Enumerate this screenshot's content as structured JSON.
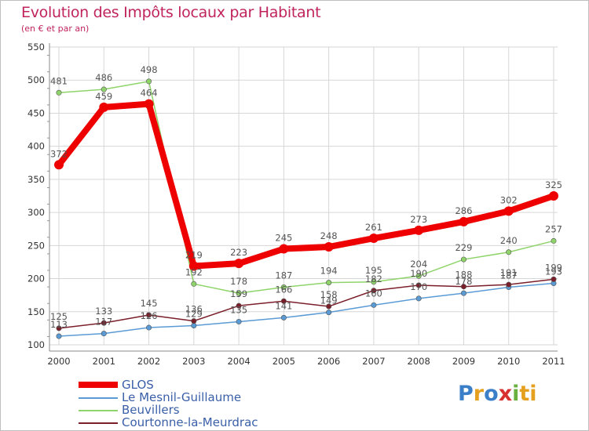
{
  "chart_data": {
    "type": "line",
    "title": "Evolution des Impôts locaux par Habitant",
    "subtitle": "(en € et par an)",
    "x": [
      "2000",
      "2001",
      "2002",
      "2003",
      "2004",
      "2005",
      "2006",
      "2007",
      "2008",
      "2009",
      "2010",
      "2011"
    ],
    "ylim": [
      100,
      550
    ],
    "yticks": [
      100,
      150,
      200,
      250,
      300,
      350,
      400,
      450,
      500,
      550
    ],
    "grid": true,
    "series": [
      {
        "name": "GLOS",
        "color": "#ee0000",
        "values": [
          372,
          459,
          464,
          219,
          223,
          245,
          248,
          261,
          273,
          286,
          302,
          325
        ]
      },
      {
        "name": "Le Mesnil-Guillaume",
        "color": "#5b9bd5",
        "values": [
          113,
          117,
          126,
          129,
          135,
          141,
          149,
          160,
          170,
          178,
          187,
          193
        ]
      },
      {
        "name": "Beuvillers",
        "color": "#8fd46a",
        "values": [
          481,
          486,
          498,
          192,
          178,
          187,
          194,
          195,
          204,
          229,
          240,
          257
        ]
      },
      {
        "name": "Courtonne-la-Meurdrac",
        "color": "#7a1f2a",
        "values": [
          125,
          133,
          145,
          136,
          159,
          166,
          158,
          182,
          190,
          188,
          191,
          199
        ]
      }
    ]
  },
  "legend": {
    "items": [
      "GLOS",
      "Le Mesnil-Guillaume",
      "Beuvillers",
      "Courtonne-la-Meurdrac"
    ]
  },
  "logo": {
    "text": "Proxiti",
    "letters": [
      "P",
      "r",
      "o",
      "x",
      "i",
      "ti"
    ]
  }
}
